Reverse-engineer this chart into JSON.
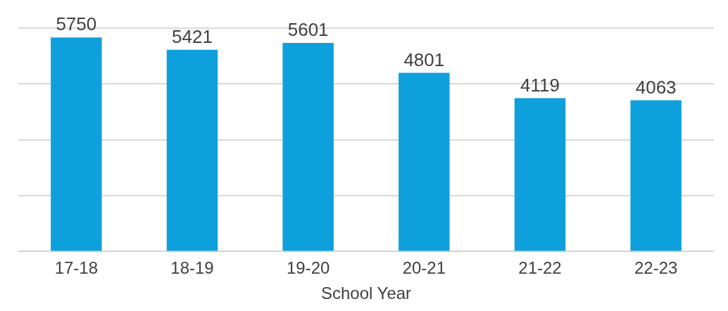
{
  "chart_data": {
    "type": "bar",
    "xlabel": "School Year",
    "categories": [
      "17-18",
      "18-19",
      "19-20",
      "20-21",
      "21-22",
      "22-23"
    ],
    "values": [
      5750,
      5421,
      5601,
      4801,
      4119,
      4063
    ],
    "color": "#0ea0dc",
    "ylim": [
      0,
      6000
    ],
    "yticks": [
      {
        "value": 0,
        "label": null
      },
      {
        "value": 1500,
        "label": null
      },
      {
        "value": 3000,
        "label": null
      },
      {
        "value": 4500,
        "label": null
      },
      {
        "value": 6000,
        "label": null
      }
    ],
    "grid": "y",
    "data_labels": true,
    "legend": false
  }
}
